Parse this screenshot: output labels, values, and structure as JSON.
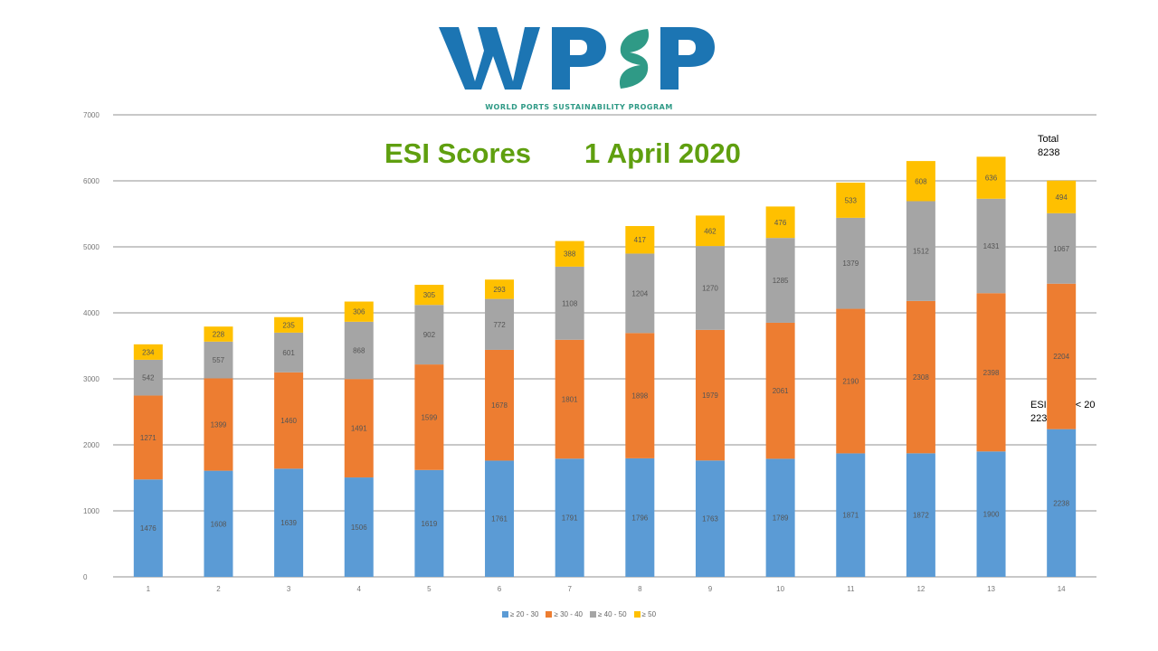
{
  "logo": {
    "text": "WPSP",
    "tagline": "WORLD PORTS SUSTAINABILITY PROGRAM"
  },
  "heading": {
    "left": "ESI Scores",
    "right": "1 April 2020"
  },
  "notes": {
    "total_label": "Total",
    "total_value": "8238",
    "esi_label": "ESI",
    "esi_lt": "< 20",
    "esi_value": "223"
  },
  "colors": {
    "blue": "#5b9bd5",
    "orange": "#ed7d31",
    "gray": "#a5a5a5",
    "gold": "#ffc000",
    "title_green": "#5f9f0f",
    "logo_blue": "#1c75b3",
    "logo_teal": "#2f9a86"
  },
  "chart_data": {
    "type": "bar",
    "stacked": true,
    "categories": [
      "1",
      "2",
      "3",
      "4",
      "5",
      "6",
      "7",
      "8",
      "9",
      "10",
      "11",
      "12",
      "13",
      "14"
    ],
    "series": [
      {
        "name": "≥ 20 - 30",
        "color": "#5b9bd5",
        "values": [
          1476,
          1608,
          1639,
          1506,
          1619,
          1761,
          1791,
          1796,
          1763,
          1789,
          1871,
          1872,
          1900,
          2238
        ]
      },
      {
        "name": "≥ 30 - 40",
        "color": "#ed7d31",
        "values": [
          1271,
          1399,
          1460,
          1491,
          1599,
          1678,
          1801,
          1898,
          1979,
          2061,
          2190,
          2308,
          2398,
          2204
        ]
      },
      {
        "name": "≥ 40 - 50",
        "color": "#a5a5a5",
        "values": [
          542,
          557,
          601,
          868,
          902,
          772,
          1108,
          1204,
          1270,
          1285,
          1379,
          1512,
          1431,
          1067
        ]
      },
      {
        "name": "≥ 50",
        "color": "#ffc000",
        "values": [
          234,
          228,
          235,
          306,
          305,
          293,
          388,
          417,
          462,
          476,
          533,
          608,
          636,
          494
        ]
      }
    ],
    "yticks": [
      "0",
      "1000",
      "2000",
      "3000",
      "4000",
      "5000",
      "6000",
      "7000"
    ],
    "ylim": [
      0,
      7000
    ],
    "grid": true,
    "legend_position": "bottom"
  }
}
